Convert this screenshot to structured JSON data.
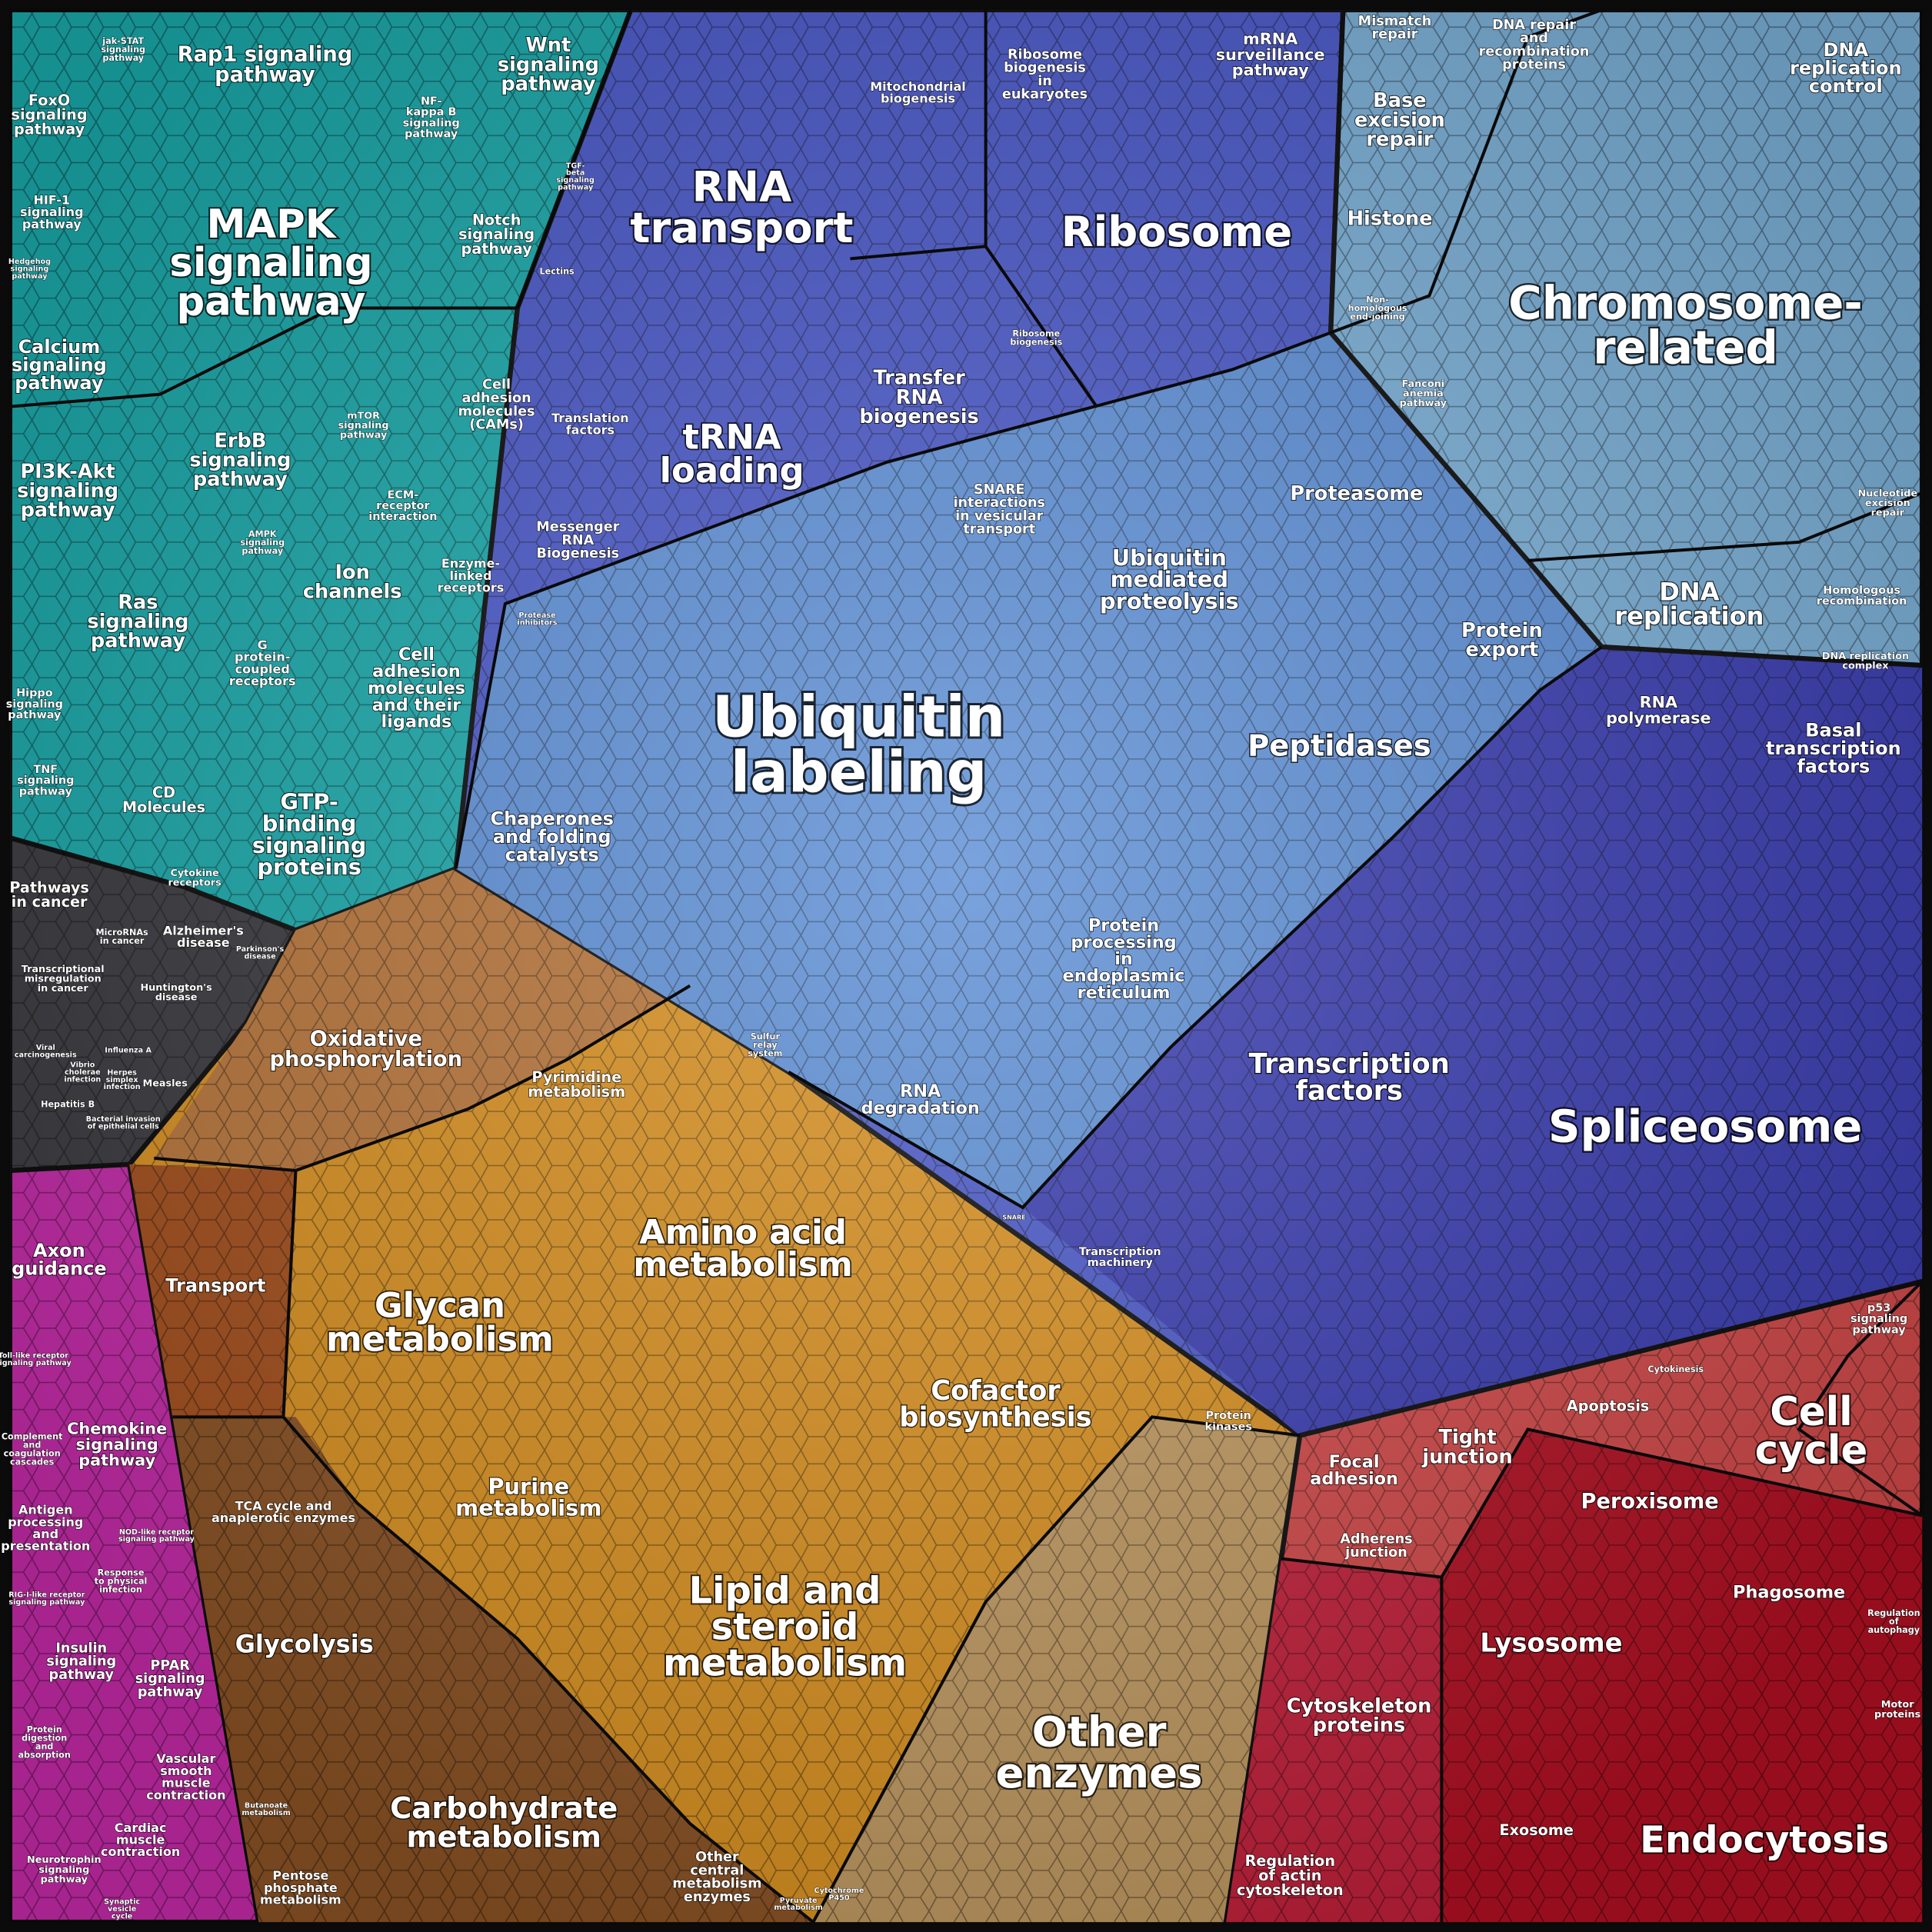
{
  "labels": [
    [
      "jak-STAT",
      "signaling",
      "pathway"
    ],
    [
      "Rap1 signaling",
      "pathway"
    ],
    [
      "Wnt",
      "signaling",
      "pathway"
    ],
    [
      "FoxO",
      "signaling",
      "pathway"
    ],
    [
      "NF-",
      "kappa B",
      "signaling",
      "pathway"
    ],
    [
      "MAPK",
      "signaling",
      "pathway"
    ],
    [
      "HIF-1",
      "signaling",
      "pathway"
    ],
    [
      "Hedgehog",
      "signaling",
      "pathway"
    ],
    [
      "Notch",
      "signaling",
      "pathway"
    ],
    [
      "TGF-",
      "beta",
      "signaling",
      "pathway"
    ],
    [
      "Lectins"
    ],
    [
      "Calcium",
      "signaling",
      "pathway"
    ],
    [
      "Cell",
      "adhesion",
      "molecules",
      "(CAMs)"
    ],
    [
      "mTOR",
      "signaling",
      "pathway"
    ],
    [
      "ErbB",
      "signaling",
      "pathway"
    ],
    [
      "PI3K-Akt",
      "signaling",
      "pathway"
    ],
    [
      "ECM-",
      "receptor",
      "interaction"
    ],
    [
      "AMPK",
      "signaling",
      "pathway"
    ],
    [
      "Ion",
      "channels"
    ],
    [
      "Enzyme-",
      "linked",
      "receptors"
    ],
    [
      "Ras",
      "signaling",
      "pathway"
    ],
    [
      "G",
      "protein-",
      "coupled",
      "receptors"
    ],
    [
      "Cell",
      "adhesion",
      "molecules",
      "and their",
      "ligands"
    ],
    [
      "Hippo",
      "signaling",
      "pathway"
    ],
    [
      "TNF",
      "signaling",
      "pathway"
    ],
    [
      "CD",
      "Molecules"
    ],
    [
      "GTP-",
      "binding",
      "signaling",
      "proteins"
    ],
    [
      "Cytokine",
      "receptors"
    ],
    [
      "Pathways",
      "in cancer"
    ],
    [
      "MicroRNAs",
      "in cancer"
    ],
    [
      "Alzheimer's",
      "disease"
    ],
    [
      "Parkinson's",
      "disease"
    ],
    [
      "Transcriptional",
      "misregulation",
      "in cancer"
    ],
    [
      "Huntington's",
      "disease"
    ],
    [
      "Viral",
      "carcinogenesis"
    ],
    [
      "Vibrio",
      "cholerae",
      "infection"
    ],
    [
      "Herpes",
      "simplex",
      "infection"
    ],
    [
      "Influenza A"
    ],
    [
      "Measles"
    ],
    [
      "Hepatitis B"
    ],
    [
      "Bacterial invasion",
      "of epithelial cells"
    ],
    [
      "Axon",
      "guidance"
    ],
    [
      "Toll-like receptor",
      "signaling pathway"
    ],
    [
      "Chemokine",
      "signaling",
      "pathway"
    ],
    [
      "Complement",
      "and",
      "coagulation",
      "cascades"
    ],
    [
      "Antigen",
      "processing",
      "and",
      "presentation"
    ],
    [
      "NOD-like receptor",
      "signaling pathway"
    ],
    [
      "Response",
      "to physical",
      "infection"
    ],
    [
      "RIG-I-like receptor",
      "signaling pathway"
    ],
    [
      "Insulin",
      "signaling",
      "pathway"
    ],
    [
      "PPAR",
      "signaling",
      "pathway"
    ],
    [
      "Protein",
      "digestion",
      "and",
      "absorption"
    ],
    [
      "Vascular",
      "smooth",
      "muscle",
      "contraction"
    ],
    [
      "Cardiac",
      "muscle",
      "contraction"
    ],
    [
      "Neurotrophin",
      "signaling",
      "pathway"
    ],
    [
      "Synaptic",
      "vesicle",
      "cycle"
    ],
    [
      "Oxidative",
      "phosphorylation"
    ],
    [
      "Pyrimidine",
      "metabolism"
    ],
    [
      "Transport"
    ],
    [
      "Amino acid",
      "metabolism"
    ],
    [
      "Glycan",
      "metabolism"
    ],
    [
      "Cofactor",
      "biosynthesis"
    ],
    [
      "Purine",
      "metabolism"
    ],
    [
      "TCA cycle and",
      "anaplerotic enzymes"
    ],
    [
      "Glycolysis"
    ],
    [
      "Lipid and",
      "steroid",
      "metabolism"
    ],
    [
      "Carbohydrate",
      "metabolism"
    ],
    [
      "Butanoate",
      "metabolism"
    ],
    [
      "Pentose",
      "phosphate",
      "metabolism"
    ],
    [
      "Other",
      "central",
      "metabolism",
      "enzymes"
    ],
    [
      "Pyruvate",
      "metabolism"
    ],
    [
      "Other",
      "enzymes"
    ],
    [
      "Protein",
      "kinases"
    ],
    [
      "Cytochrome",
      "P450"
    ],
    [
      "RNA",
      "transport"
    ],
    [
      "Mitochondrial",
      "biogenesis"
    ],
    [
      "Ribosome",
      "biogenesis",
      "in",
      "eukaryotes"
    ],
    [
      "mRNA",
      "surveillance",
      "pathway"
    ],
    [
      "Ribosome"
    ],
    [
      "Ribosome",
      "biogenesis"
    ],
    [
      "Transfer",
      "RNA",
      "biogenesis"
    ],
    [
      "Translation",
      "factors"
    ],
    [
      "tRNA",
      "loading"
    ],
    [
      "Messenger",
      "RNA",
      "Biogenesis"
    ],
    [
      "SNARE",
      "interactions",
      "in vesicular",
      "transport"
    ],
    [
      "Protease",
      "inhibitors"
    ],
    [
      "Ubiquitin",
      "labeling"
    ],
    [
      "Ubiquitin",
      "mediated",
      "proteolysis"
    ],
    [
      "Proteasome"
    ],
    [
      "Protein",
      "export"
    ],
    [
      "Peptidases"
    ],
    [
      "Chaperones",
      "and folding",
      "catalysts"
    ],
    [
      "Protein",
      "processing",
      "in",
      "endoplasmic",
      "reticulum"
    ],
    [
      "Sulfur",
      "relay",
      "system"
    ],
    [
      "RNA",
      "degradation"
    ],
    [
      "Transcription",
      "factors"
    ],
    [
      "Spliceosome"
    ],
    [
      "RNA",
      "polymerase"
    ],
    [
      "Basal",
      "transcription",
      "factors"
    ],
    [
      "Transcription",
      "machinery"
    ],
    [
      "SNARE"
    ],
    [
      "Mismatch",
      "repair"
    ],
    [
      "DNA repair",
      "and",
      "recombination",
      "proteins"
    ],
    [
      "DNA",
      "replication",
      "control"
    ],
    [
      "Base",
      "excision",
      "repair"
    ],
    [
      "Histone"
    ],
    [
      "Chromosome-",
      "related"
    ],
    [
      "Non-",
      "homologous",
      "end-joining"
    ],
    [
      "Fanconi",
      "anemia",
      "pathway"
    ],
    [
      "Nucleotide",
      "excision",
      "repair"
    ],
    [
      "DNA",
      "replication"
    ],
    [
      "Homologous",
      "recombination"
    ],
    [
      "DNA replication",
      "complex"
    ],
    [
      "p53",
      "signaling",
      "pathway"
    ],
    [
      "Cytokinesis"
    ],
    [
      "Apoptosis"
    ],
    [
      "Cell",
      "cycle"
    ],
    [
      "Focal",
      "adhesion"
    ],
    [
      "Tight",
      "junction"
    ],
    [
      "Peroxisome"
    ],
    [
      "Adherens",
      "junction"
    ],
    [
      "Phagosome"
    ],
    [
      "Regulation",
      "of",
      "autophagy"
    ],
    [
      "Lysosome"
    ],
    [
      "Cytoskeleton",
      "proteins"
    ],
    [
      "Motor",
      "proteins"
    ],
    [
      "Exosome"
    ],
    [
      "Endocytosis"
    ],
    [
      "Regulation",
      "of actin",
      "cytoskeleton"
    ]
  ]
}
